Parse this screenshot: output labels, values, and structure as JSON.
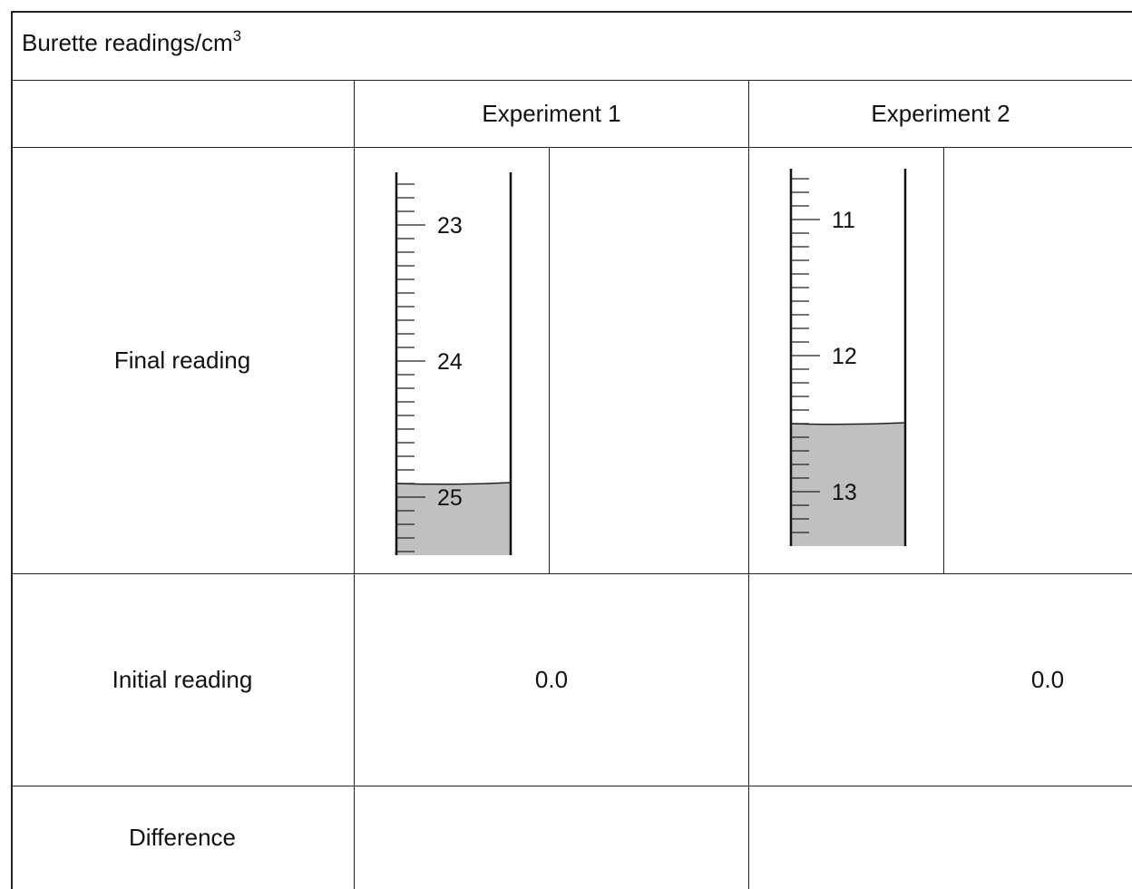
{
  "table": {
    "title": "Burette readings/cm",
    "title_sup": "3",
    "headers": [
      "Experiment 1",
      "Experiment 2"
    ],
    "rows": {
      "final": "Final reading",
      "initial": "Initial reading",
      "difference": "Difference"
    },
    "initial_values": [
      "0.0",
      "0.0"
    ]
  },
  "burettes": [
    {
      "labels": [
        "23",
        "24",
        "25"
      ],
      "first_label": 23,
      "liquid_level": 24.9,
      "bottom_value": 25.5
    },
    {
      "labels": [
        "11",
        "12",
        "13"
      ],
      "first_label": 11,
      "liquid_level": 12.5,
      "bottom_value": 13.4
    }
  ],
  "colors": {
    "liquid": "#c0c0c0",
    "border": "#222222"
  }
}
